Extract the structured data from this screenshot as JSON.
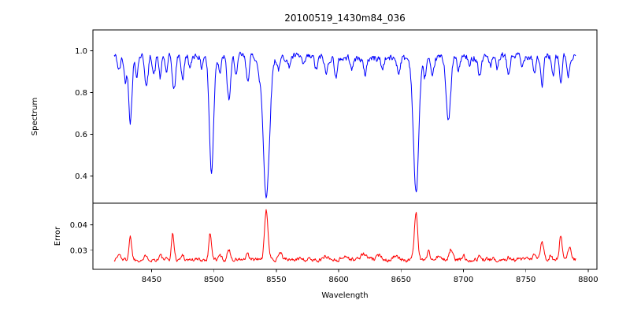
{
  "chart_data": {
    "type": "line",
    "title": "20100519_1430m84_036",
    "xlabel": "Wavelength",
    "xlim": [
      8403,
      8807
    ],
    "x_ticks": [
      8450,
      8500,
      8550,
      8600,
      8650,
      8700,
      8750,
      8800
    ],
    "x_tick_labels": [
      "8450",
      "8500",
      "8550",
      "8600",
      "8650",
      "8700",
      "8750",
      "8800"
    ],
    "x_start": 8420,
    "x_end": 8790,
    "n_points": 745,
    "grid": false,
    "legend": "none",
    "features_format": "each feature is [center_wavelength, amplitude, gaussian_width]; panel 0 amplitudes are absorption depths below the continuum, panel 1 amplitudes are peak heights above the error baseline",
    "panels": [
      {
        "name": "spectrum",
        "ylabel": "Spectrum",
        "ylim": [
          0.27,
          1.1
        ],
        "y_ticks": [
          1.0,
          0.8,
          0.6,
          0.4
        ],
        "y_tick_labels": [
          "1.0",
          "0.8",
          "0.6",
          "0.4"
        ],
        "color": "#0000ff",
        "baseline": 0.972,
        "noise_amp": 0.03,
        "seed": 42,
        "features": [
          [
            8424,
            0.07,
            1.2
          ],
          [
            8429,
            0.12,
            1.1
          ],
          [
            8433,
            0.31,
            1.3
          ],
          [
            8438,
            0.09,
            1.1
          ],
          [
            8446,
            0.15,
            1.3
          ],
          [
            8452,
            0.09,
            1.1
          ],
          [
            8457,
            0.11,
            1.0
          ],
          [
            8462,
            0.08,
            1.1
          ],
          [
            8468,
            0.17,
            1.3
          ],
          [
            8475,
            0.11,
            1.2
          ],
          [
            8481,
            0.07,
            1.0
          ],
          [
            8490,
            0.06,
            1.0
          ],
          [
            8498,
            0.56,
            1.7
          ],
          [
            8505,
            0.08,
            1.1
          ],
          [
            8512,
            0.21,
            1.5
          ],
          [
            8518,
            0.09,
            1.1
          ],
          [
            8527,
            0.11,
            1.3
          ],
          [
            8536,
            0.07,
            1.1
          ],
          [
            8542,
            0.67,
            2.5
          ],
          [
            8552,
            0.06,
            1.3
          ],
          [
            8560,
            0.05,
            1.0
          ],
          [
            8572,
            0.05,
            1.0
          ],
          [
            8582,
            0.06,
            1.1
          ],
          [
            8590,
            0.08,
            1.2
          ],
          [
            8598,
            0.09,
            1.2
          ],
          [
            8611,
            0.05,
            1.0
          ],
          [
            8621,
            0.08,
            1.2
          ],
          [
            8635,
            0.05,
            1.0
          ],
          [
            8648,
            0.07,
            1.1
          ],
          [
            8662,
            0.65,
            2.1
          ],
          [
            8669,
            0.09,
            1.1
          ],
          [
            8675,
            0.11,
            1.2
          ],
          [
            8688,
            0.31,
            1.7
          ],
          [
            8696,
            0.07,
            1.0
          ],
          [
            8705,
            0.05,
            1.0
          ],
          [
            8713,
            0.09,
            1.2
          ],
          [
            8722,
            0.05,
            1.0
          ],
          [
            8727,
            0.07,
            1.1
          ],
          [
            8736,
            0.09,
            1.2
          ],
          [
            8747,
            0.06,
            1.0
          ],
          [
            8757,
            0.08,
            1.1
          ],
          [
            8763,
            0.15,
            1.2
          ],
          [
            8772,
            0.11,
            1.1
          ],
          [
            8778,
            0.13,
            1.1
          ],
          [
            8784,
            0.11,
            1.1
          ]
        ]
      },
      {
        "name": "error",
        "ylabel": "Error",
        "ylim": [
          0.0225,
          0.0485
        ],
        "y_ticks": [
          0.04,
          0.03
        ],
        "y_tick_labels": [
          "0.04",
          "0.03"
        ],
        "color": "#ff0000",
        "baseline": 0.0263,
        "noise_amp": 0.0014,
        "seed": 1337,
        "features": [
          [
            8424,
            0.002,
            1.4
          ],
          [
            8433,
            0.009,
            1.1
          ],
          [
            8446,
            0.002,
            1.1
          ],
          [
            8457,
            0.0018,
            1.0
          ],
          [
            8467,
            0.0105,
            1.0
          ],
          [
            8475,
            0.002,
            1.0
          ],
          [
            8497,
            0.0105,
            1.1
          ],
          [
            8505,
            0.0018,
            1.0
          ],
          [
            8512,
            0.004,
            1.2
          ],
          [
            8527,
            0.002,
            1.0
          ],
          [
            8542,
            0.019,
            1.4
          ],
          [
            8553,
            0.003,
            1.6
          ],
          [
            8570,
            0.001,
            1.2
          ],
          [
            8590,
            0.0015,
            1.6
          ],
          [
            8605,
            0.0015,
            2.0
          ],
          [
            8620,
            0.002,
            2.6
          ],
          [
            8633,
            0.0017,
            2.0
          ],
          [
            8645,
            0.0015,
            1.6
          ],
          [
            8662,
            0.019,
            1.3
          ],
          [
            8672,
            0.003,
            1.2
          ],
          [
            8680,
            0.0015,
            1.0
          ],
          [
            8690,
            0.004,
            1.3
          ],
          [
            8700,
            0.0015,
            1.0
          ],
          [
            8713,
            0.0015,
            1.0
          ],
          [
            8736,
            0.0016,
            1.0
          ],
          [
            8757,
            0.002,
            1.0
          ],
          [
            8763,
            0.0075,
            1.3
          ],
          [
            8770,
            0.002,
            1.0
          ],
          [
            8778,
            0.0095,
            1.1
          ],
          [
            8785,
            0.005,
            1.1
          ]
        ]
      }
    ]
  }
}
